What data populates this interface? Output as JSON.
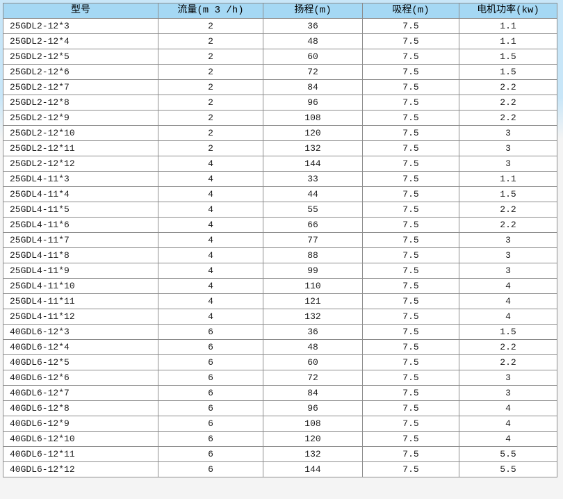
{
  "page": {
    "background_top_color": "#c8e6f8",
    "background_bottom_color": "#f4f4f4"
  },
  "table": {
    "header_bg_color": "#a5d8f4",
    "border_color": "#8c8c8c",
    "columns": {
      "model": "型号",
      "flow": "流量(m 3 /h)",
      "head": "扬程(m)",
      "suction": "吸程(m)",
      "power": "电机功率(kw)"
    },
    "rows": [
      {
        "model": "25GDL2-12*3",
        "flow": "2",
        "head": "36",
        "suction": "7.5",
        "power": "1.1"
      },
      {
        "model": "25GDL2-12*4",
        "flow": "2",
        "head": "48",
        "suction": "7.5",
        "power": "1.1"
      },
      {
        "model": "25GDL2-12*5",
        "flow": "2",
        "head": "60",
        "suction": "7.5",
        "power": "1.5"
      },
      {
        "model": "25GDL2-12*6",
        "flow": "2",
        "head": "72",
        "suction": "7.5",
        "power": "1.5"
      },
      {
        "model": "25GDL2-12*7",
        "flow": "2",
        "head": "84",
        "suction": "7.5",
        "power": "2.2"
      },
      {
        "model": "25GDL2-12*8",
        "flow": "2",
        "head": "96",
        "suction": "7.5",
        "power": "2.2"
      },
      {
        "model": "25GDL2-12*9",
        "flow": "2",
        "head": "108",
        "suction": "7.5",
        "power": "2.2"
      },
      {
        "model": "25GDL2-12*10",
        "flow": "2",
        "head": "120",
        "suction": "7.5",
        "power": "3"
      },
      {
        "model": "25GDL2-12*11",
        "flow": "2",
        "head": "132",
        "suction": "7.5",
        "power": "3"
      },
      {
        "model": "25GDL2-12*12",
        "flow": "4",
        "head": "144",
        "suction": "7.5",
        "power": "3"
      },
      {
        "model": "25GDL4-11*3",
        "flow": "4",
        "head": "33",
        "suction": "7.5",
        "power": "1.1"
      },
      {
        "model": "25GDL4-11*4",
        "flow": "4",
        "head": "44",
        "suction": "7.5",
        "power": "1.5"
      },
      {
        "model": "25GDL4-11*5",
        "flow": "4",
        "head": "55",
        "suction": "7.5",
        "power": "2.2"
      },
      {
        "model": "25GDL4-11*6",
        "flow": "4",
        "head": "66",
        "suction": "7.5",
        "power": "2.2"
      },
      {
        "model": "25GDL4-11*7",
        "flow": "4",
        "head": "77",
        "suction": "7.5",
        "power": "3"
      },
      {
        "model": "25GDL4-11*8",
        "flow": "4",
        "head": "88",
        "suction": "7.5",
        "power": "3"
      },
      {
        "model": "25GDL4-11*9",
        "flow": "4",
        "head": "99",
        "suction": "7.5",
        "power": "3"
      },
      {
        "model": "25GDL4-11*10",
        "flow": "4",
        "head": "110",
        "suction": "7.5",
        "power": "4"
      },
      {
        "model": "25GDL4-11*11",
        "flow": "4",
        "head": "121",
        "suction": "7.5",
        "power": "4"
      },
      {
        "model": "25GDL4-11*12",
        "flow": "4",
        "head": "132",
        "suction": "7.5",
        "power": "4"
      },
      {
        "model": "40GDL6-12*3",
        "flow": "6",
        "head": "36",
        "suction": "7.5",
        "power": "1.5"
      },
      {
        "model": "40GDL6-12*4",
        "flow": "6",
        "head": "48",
        "suction": "7.5",
        "power": "2.2"
      },
      {
        "model": "40GDL6-12*5",
        "flow": "6",
        "head": "60",
        "suction": "7.5",
        "power": "2.2"
      },
      {
        "model": "40GDL6-12*6",
        "flow": "6",
        "head": "72",
        "suction": "7.5",
        "power": "3"
      },
      {
        "model": "40GDL6-12*7",
        "flow": "6",
        "head": "84",
        "suction": "7.5",
        "power": "3"
      },
      {
        "model": "40GDL6-12*8",
        "flow": "6",
        "head": "96",
        "suction": "7.5",
        "power": "4"
      },
      {
        "model": "40GDL6-12*9",
        "flow": "6",
        "head": "108",
        "suction": "7.5",
        "power": "4"
      },
      {
        "model": "40GDL6-12*10",
        "flow": "6",
        "head": "120",
        "suction": "7.5",
        "power": "4"
      },
      {
        "model": "40GDL6-12*11",
        "flow": "6",
        "head": "132",
        "suction": "7.5",
        "power": "5.5"
      },
      {
        "model": "40GDL6-12*12",
        "flow": "6",
        "head": "144",
        "suction": "7.5",
        "power": "5.5"
      }
    ]
  }
}
